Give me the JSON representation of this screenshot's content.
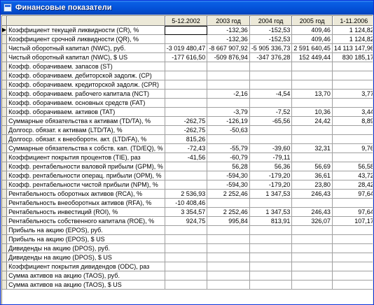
{
  "window": {
    "title": "Финансовые показатели"
  },
  "columns": [
    "",
    "5-12.2002",
    "2003 год",
    "2004 год",
    "2005 год",
    "1-11.2006"
  ],
  "rows": [
    {
      "label": "Коэффициент текущей ликвидности (CR), %",
      "values": [
        "",
        "-132,36",
        "-152,53",
        "409,46",
        "1 124,82"
      ]
    },
    {
      "label": "Коэффициент срочной ликвидности (QR), %",
      "values": [
        "",
        "-132,36",
        "-152,53",
        "409,46",
        "1 124,82"
      ]
    },
    {
      "label": "Чистый оборотный капитал (NWC), руб.",
      "values": [
        "-3 019 480,47",
        "-8 667 907,92",
        "-5 905 336,73",
        "2 591 640,45",
        "14 113 147,96"
      ]
    },
    {
      "label": "Чистый оборотный капитал (NWC), $ US",
      "values": [
        "-177 616,50",
        "-509 876,94",
        "-347 376,28",
        "152 449,44",
        "830 185,17"
      ]
    },
    {
      "label": "Коэфф. оборачиваем. запасов (ST)",
      "values": [
        "",
        "",
        "",
        "",
        ""
      ]
    },
    {
      "label": "Коэфф. оборачиваем. дебиторской задолж. (CP)",
      "values": [
        "",
        "",
        "",
        "",
        ""
      ]
    },
    {
      "label": "Коэфф. оборачиваем. кредиторской задолж. (CPR)",
      "values": [
        "",
        "",
        "",
        "",
        ""
      ]
    },
    {
      "label": "Коэфф. оборачиваем. рабочего капитала (NCT)",
      "values": [
        "",
        "-2,16",
        "-4,54",
        "13,70",
        "3,77"
      ]
    },
    {
      "label": "Коэфф. оборачиваем. основных средств (FAT)",
      "values": [
        "",
        "",
        "",
        "",
        ""
      ]
    },
    {
      "label": "Коэфф. оборачиваем. активов (TAT)",
      "values": [
        "",
        "-3,79",
        "-7,52",
        "10,36",
        "3,44"
      ]
    },
    {
      "label": "Суммарные обязательства к активам (TD/TA), %",
      "values": [
        "-262,75",
        "-126,19",
        "-65,56",
        "24,42",
        "8,89"
      ]
    },
    {
      "label": "Долгоср. обязат. к активам (LTD/TA), %",
      "values": [
        "-262,75",
        "-50,63",
        "",
        "",
        ""
      ]
    },
    {
      "label": "Долгоср. обязат. к внеоборотн. акт. (LTD/FA), %",
      "values": [
        "815,26",
        "",
        "",
        "",
        ""
      ]
    },
    {
      "label": "Суммарные обязательства к собств. кап. (TD/EQ), %",
      "values": [
        "-72,43",
        "-55,79",
        "-39,60",
        "32,31",
        "9,76"
      ]
    },
    {
      "label": "Коэффициент покрытия процентов (TIE), раз",
      "values": [
        "-41,56",
        "-60,79",
        "-79,11",
        "",
        ""
      ]
    },
    {
      "label": "Коэфф. рентабельности валовой прибыли (GPM), %",
      "values": [
        "",
        "56,28",
        "56,36",
        "56,69",
        "56,58"
      ]
    },
    {
      "label": "Коэфф. рентабельности операц. прибыли (OPM), %",
      "values": [
        "",
        "-594,30",
        "-179,20",
        "36,61",
        "43,72"
      ]
    },
    {
      "label": "Коэфф. рентабельности чистой прибыли (NPM), %",
      "values": [
        "",
        "-594,30",
        "-179,20",
        "23,80",
        "28,42"
      ]
    },
    {
      "label": "Рентабельность оборотных активов (RCA), %",
      "values": [
        "2 536,93",
        "2 252,46",
        "1 347,53",
        "246,43",
        "97,64"
      ]
    },
    {
      "label": "Рентабельность внеоборотных активов (RFA), %",
      "values": [
        "-10 408,46",
        "",
        "",
        "",
        ""
      ]
    },
    {
      "label": "Рентабельность инвестиций (ROI), %",
      "values": [
        "3 354,57",
        "2 252,46",
        "1 347,53",
        "246,43",
        "97,64"
      ]
    },
    {
      "label": "Рентабельность собственного капитала (ROE), %",
      "values": [
        "924,75",
        "995,84",
        "813,91",
        "326,07",
        "107,17"
      ]
    },
    {
      "label": "Прибыль на акцию (EPOS), руб.",
      "values": [
        "",
        "",
        "",
        "",
        ""
      ]
    },
    {
      "label": "Прибыль на акцию (EPOS), $ US",
      "values": [
        "",
        "",
        "",
        "",
        ""
      ]
    },
    {
      "label": "Дивиденды на акцию (DPOS), руб.",
      "values": [
        "",
        "",
        "",
        "",
        ""
      ]
    },
    {
      "label": "Дивиденды на акцию (DPOS), $ US",
      "values": [
        "",
        "",
        "",
        "",
        ""
      ]
    },
    {
      "label": "Коэффициент покрытия дивидендов (ODC), раз",
      "values": [
        "",
        "",
        "",
        "",
        ""
      ]
    },
    {
      "label": "Сумма активов на акцию (TAOS), руб.",
      "values": [
        "",
        "",
        "",
        "",
        ""
      ]
    },
    {
      "label": "Сумма активов на акцию (TAOS), $ US",
      "values": [
        "",
        "",
        "",
        "",
        ""
      ]
    }
  ],
  "current_row_marker": "▶"
}
